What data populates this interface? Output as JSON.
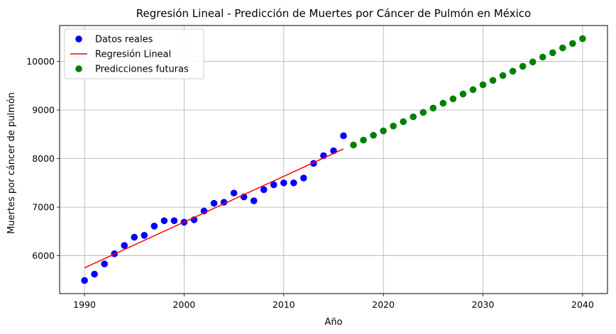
{
  "chart_data": {
    "type": "scatter",
    "title": "Regresión Lineal - Predicción de Muertes por Cáncer de Pulmón en México",
    "xlabel": "Año",
    "ylabel": "Muertes por cáncer de pulmón",
    "xlim": [
      1987.5,
      2042.5
    ],
    "ylim": [
      5220,
      10740
    ],
    "xticks": [
      1990,
      2000,
      2010,
      2020,
      2030,
      2040
    ],
    "yticks": [
      6000,
      7000,
      8000,
      9000,
      10000
    ],
    "grid": true,
    "legend_position": "top-left",
    "series": [
      {
        "name": "Datos reales",
        "kind": "scatter",
        "color": "#0000ff",
        "x": [
          1990,
          1991,
          1992,
          1993,
          1994,
          1995,
          1996,
          1997,
          1998,
          1999,
          2000,
          2001,
          2002,
          2003,
          2004,
          2005,
          2006,
          2007,
          2008,
          2009,
          2010,
          2011,
          2012,
          2013,
          2014,
          2015,
          2016
        ],
        "y": [
          5490,
          5620,
          5830,
          6040,
          6210,
          6380,
          6420,
          6610,
          6720,
          6720,
          6690,
          6740,
          6920,
          7080,
          7100,
          7290,
          7210,
          7130,
          7360,
          7460,
          7500,
          7500,
          7600,
          7900,
          8060,
          8160,
          8470
        ]
      },
      {
        "name": "Regresión Lineal",
        "kind": "line",
        "color": "#ff0000",
        "x": [
          1990,
          2016
        ],
        "y": [
          5750,
          8200
        ]
      },
      {
        "name": "Predicciones futuras",
        "kind": "scatter",
        "color": "#008000",
        "x": [
          2017,
          2018,
          2019,
          2020,
          2021,
          2022,
          2023,
          2024,
          2025,
          2026,
          2027,
          2028,
          2029,
          2030,
          2031,
          2032,
          2033,
          2034,
          2035,
          2036,
          2037,
          2038,
          2039,
          2040
        ],
        "y": [
          8280,
          8380,
          8480,
          8570,
          8670,
          8760,
          8860,
          8950,
          9040,
          9140,
          9230,
          9330,
          9420,
          9520,
          9610,
          9710,
          9800,
          9900,
          9990,
          10090,
          10180,
          10280,
          10370,
          10470
        ]
      }
    ]
  }
}
